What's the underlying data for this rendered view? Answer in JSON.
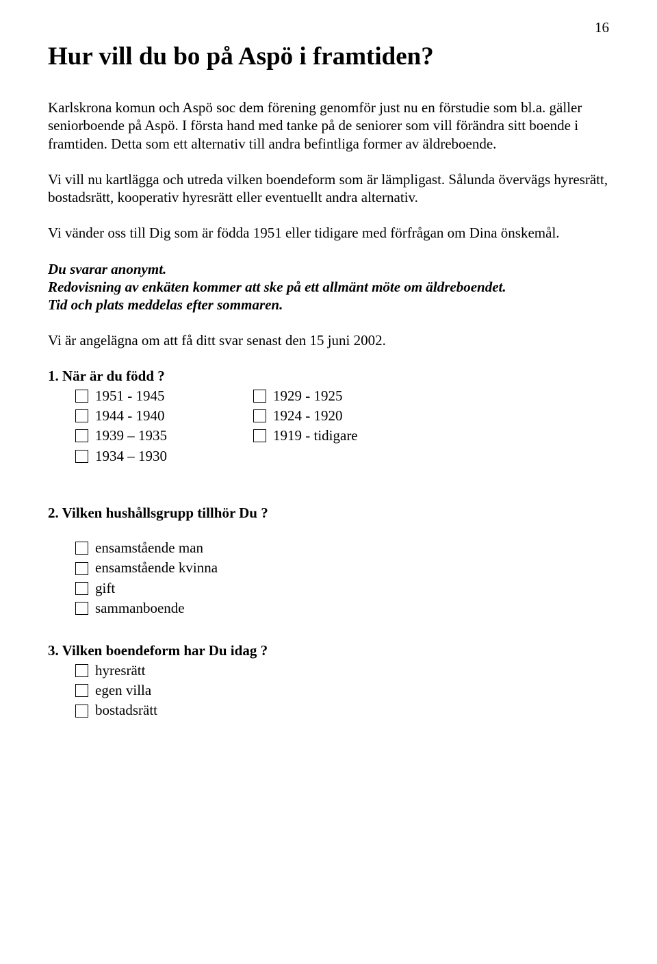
{
  "pageNumber": "16",
  "title": "Hur vill du bo på Aspö i framtiden?",
  "para1": "Karlskrona komun och Aspö soc dem förening genomför just nu en förstudie som bl.a. gäller seniorboende på Aspö. I första hand med tanke på de seniorer som vill förändra sitt boende i framtiden. Detta som ett alternativ till andra befintliga former av äldreboende.",
  "para2": "Vi vill nu kartlägga och utreda vilken boendeform som är lämpligast. Sålunda övervägs hyresrätt, bostadsrätt, kooperativ hyresrätt eller eventuellt andra alternativ.",
  "para3": "Vi vänder oss till Dig som är födda 1951 eller tidigare med förfrågan om Dina önskemål.",
  "para4_line1": "Du svarar anonymt.",
  "para4_line2": "Redovisning av enkäten kommer att ske på ett allmänt möte om äldreboendet.",
  "para4_line3": "Tid och plats meddelas efter sommaren.",
  "para5": "Vi är angelägna om att få ditt svar senast den 15 juni  2002.",
  "q1": {
    "heading": "1. När är du född ?",
    "col1": [
      "1951 - 1945",
      "1944 - 1940",
      "1939 – 1935",
      "1934 – 1930"
    ],
    "col2": [
      "1929 - 1925",
      "1924 - 1920",
      "1919 - tidigare"
    ]
  },
  "q2": {
    "heading": "2. Vilken hushållsgrupp tillhör Du ?",
    "options": [
      "ensamstående man",
      "ensamstående kvinna",
      "gift",
      "sammanboende"
    ]
  },
  "q3": {
    "heading": "3. Vilken boendeform har Du idag ?",
    "options": [
      "hyresrätt",
      "egen villa",
      "bostadsrätt"
    ]
  }
}
